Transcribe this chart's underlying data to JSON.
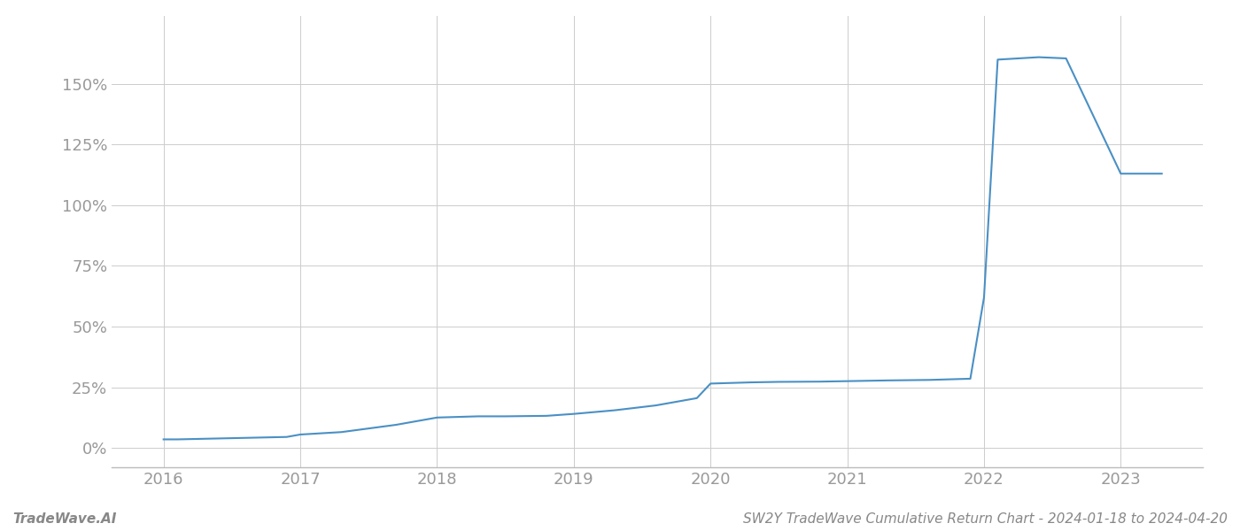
{
  "x_values": [
    2016.0,
    2016.1,
    2016.5,
    2016.9,
    2017.0,
    2017.3,
    2017.7,
    2018.0,
    2018.3,
    2018.5,
    2018.8,
    2019.0,
    2019.3,
    2019.6,
    2019.9,
    2020.0,
    2020.3,
    2020.5,
    2020.8,
    2021.0,
    2021.3,
    2021.6,
    2021.9,
    2022.0,
    2022.1,
    2022.4,
    2022.6,
    2023.0,
    2023.3
  ],
  "y_values": [
    3.5,
    3.5,
    4.0,
    4.5,
    5.5,
    6.5,
    9.5,
    12.5,
    13.0,
    13.0,
    13.2,
    14.0,
    15.5,
    17.5,
    20.5,
    26.5,
    27.0,
    27.2,
    27.3,
    27.5,
    27.8,
    28.0,
    28.5,
    62.0,
    160.0,
    161.0,
    160.5,
    113.0,
    113.0
  ],
  "line_color": "#4a90c4",
  "line_width": 1.5,
  "background_color": "#ffffff",
  "grid_color": "#cccccc",
  "footer_left": "TradeWave.AI",
  "footer_right": "SW2Y TradeWave Cumulative Return Chart - 2024-01-18 to 2024-04-20",
  "yticks": [
    0,
    25,
    50,
    75,
    100,
    125,
    150
  ],
  "ytick_labels": [
    "0%",
    "25%",
    "50%",
    "75%",
    "100%",
    "125%",
    "150%"
  ],
  "xlim": [
    2015.62,
    2023.6
  ],
  "ylim": [
    -8,
    178
  ],
  "xticks": [
    2016,
    2017,
    2018,
    2019,
    2020,
    2021,
    2022,
    2023
  ],
  "xtick_labels": [
    "2016",
    "2017",
    "2018",
    "2019",
    "2020",
    "2021",
    "2022",
    "2023"
  ],
  "footer_fontsize": 11,
  "tick_fontsize": 13,
  "tick_color": "#999999"
}
